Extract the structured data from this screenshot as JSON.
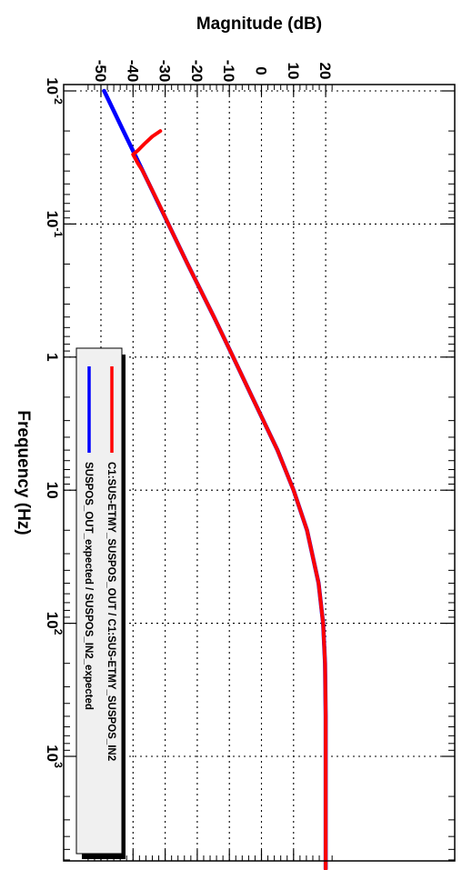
{
  "chart_data": {
    "type": "line",
    "xlabel": "Frequency (Hz)",
    "ylabel": "Magnitude (dB)",
    "x_scale": "log",
    "xlim": [
      0.01,
      8000
    ],
    "ylim": [
      -55,
      23
    ],
    "x_ticks": [
      {
        "value": 0.01,
        "base": "10",
        "exp": "-2"
      },
      {
        "value": 0.1,
        "base": "10",
        "exp": "-1"
      },
      {
        "value": 1,
        "base": "1",
        "exp": ""
      },
      {
        "value": 10,
        "base": "10",
        "exp": ""
      },
      {
        "value": 100,
        "base": "10",
        "exp": "2"
      },
      {
        "value": 1000,
        "base": "10",
        "exp": "3"
      }
    ],
    "y_ticks": [
      -50,
      -40,
      -30,
      -20,
      -10,
      0,
      10,
      20
    ],
    "y_tick_labels": [
      "-50",
      "-40",
      "-30",
      "-20",
      "-10",
      "0",
      "10",
      "20"
    ],
    "grid": true,
    "orientation": "rotated-90-clockwise",
    "legend_position": "bottom-left",
    "series": [
      {
        "name": "C1:SUS-ETMY_SUSPOS_OUT / C1:SUS-ETMY_SUSPOS_IN2",
        "color": "#ff0000",
        "x": [
          0.02,
          0.022,
          0.025,
          0.028,
          0.03,
          0.035,
          0.04,
          0.05,
          0.07,
          0.1,
          0.2,
          0.5,
          1,
          2,
          5,
          10,
          20,
          50,
          100,
          200,
          500,
          1000,
          2000,
          5000,
          7000
        ],
        "y": [
          -31.5,
          -34,
          -36.5,
          -38.5,
          -40,
          -38.5,
          -37,
          -35,
          -32,
          -29,
          -23,
          -14.8,
          -8.8,
          -2.9,
          5,
          10,
          14.2,
          17.8,
          19.2,
          19.8,
          20,
          20,
          20,
          20,
          20
        ]
      },
      {
        "name": "SUSPOS_OUT_expected / SUSPOS_IN2_expected",
        "color": "#0000ff",
        "x": [
          0.01,
          0.02,
          0.05,
          0.1,
          0.2,
          0.5,
          1,
          2,
          5,
          10,
          20,
          50,
          100,
          200,
          500,
          1000,
          2000,
          5000,
          7000
        ],
        "y": [
          -49,
          -43,
          -35,
          -29,
          -23,
          -14.8,
          -8.8,
          -2.9,
          5,
          10,
          14.2,
          17.8,
          19.2,
          19.8,
          20,
          20,
          20,
          20,
          20
        ]
      }
    ]
  }
}
